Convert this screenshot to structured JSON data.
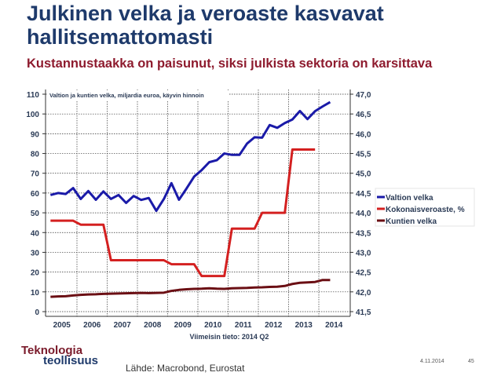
{
  "slide": {
    "title_line1": "Julkinen velka ja veroaste kasvavat",
    "title_line2": "hallitsemattomasti",
    "subtitle": "Kustannustaakka on paisunut, siksi julkista sektoria on karsittava",
    "logo_line1": "Teknologia",
    "logo_line2": "teollisuus",
    "source": "Lähde: Macrobond, Eurostat",
    "date": "4.11.2014",
    "page_number": "45"
  },
  "chart_data": {
    "type": "line",
    "title": "Valtion ja kuntien velka, miljardia euroa, käyvin hinnoin",
    "note": "Viimeisin tieto: 2014 Q2",
    "x_start": "2005 Q1",
    "frequency": "quarterly",
    "x_tick_labels": [
      "2005",
      "2006",
      "2007",
      "2008",
      "2009",
      "2010",
      "2011",
      "2012",
      "2013",
      "2014"
    ],
    "y_left": {
      "ylim": [
        0,
        110
      ],
      "ticks": [
        "0",
        "10",
        "20",
        "30",
        "40",
        "50",
        "60",
        "70",
        "80",
        "90",
        "100",
        "110"
      ]
    },
    "y_right": {
      "ylim": [
        41.5,
        47.0
      ],
      "ticks": [
        "41,5",
        "42,0",
        "42,5",
        "43,0",
        "43,5",
        "44,0",
        "44,5",
        "45,0",
        "45,5",
        "46,0",
        "46,5",
        "47,0"
      ]
    },
    "grid": true,
    "legend_position": "right",
    "series": [
      {
        "name": "Valtion velka",
        "axis": "left",
        "color": "#1a1aa8",
        "values": [
          59,
          60,
          59.5,
          62.5,
          57,
          61,
          56.6,
          60.8,
          57,
          59,
          55,
          58.5,
          56.5,
          57.5,
          51,
          57,
          65,
          56.6,
          62.3,
          68.3,
          71.6,
          75.6,
          76.6,
          80,
          79.3,
          79.3,
          85,
          88.2,
          88,
          94.4,
          93,
          95.4,
          97.2,
          101.5,
          97.4,
          101.4,
          103.8,
          106
        ]
      },
      {
        "name": "Kokonaisveroaste, %",
        "axis": "right",
        "color": "#d42020",
        "annual": true,
        "years": [
          2005,
          2006,
          2007,
          2008,
          2009,
          2010,
          2011,
          2012,
          2013
        ],
        "values": [
          43.8,
          43.7,
          42.8,
          42.8,
          42.7,
          42.4,
          43.6,
          44.0,
          45.6
        ]
      },
      {
        "name": "Kuntien velka",
        "axis": "left",
        "color": "#6b0f14",
        "values": [
          7.5,
          7.7,
          7.8,
          8.2,
          8.5,
          8.7,
          8.8,
          9.0,
          9.1,
          9.2,
          9.3,
          9.4,
          9.5,
          9.4,
          9.5,
          9.6,
          10.5,
          11.0,
          11.3,
          11.5,
          11.6,
          11.8,
          11.6,
          11.5,
          11.8,
          11.9,
          12.0,
          12.2,
          12.3,
          12.5,
          12.6,
          13.0,
          14.0,
          14.6,
          14.8,
          15.0,
          16.0,
          16.0
        ]
      }
    ]
  }
}
